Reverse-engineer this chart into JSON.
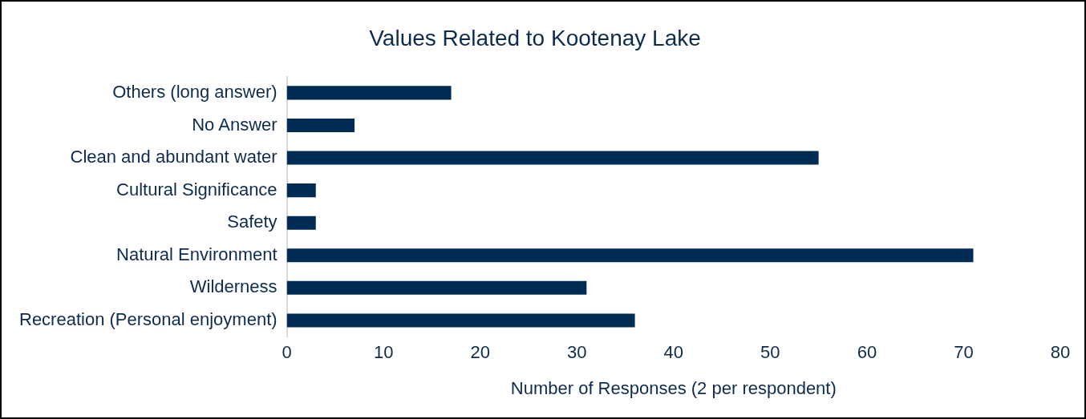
{
  "chart_data": {
    "type": "bar",
    "orientation": "horizontal",
    "title": "Values Related to Kootenay Lake",
    "xlabel": "Number of Responses (2 per respondent)",
    "categories": [
      "Others (long answer)",
      "No Answer",
      "Clean and abundant water",
      "Cultural Significance",
      "Safety",
      "Natural Environment",
      "Wilderness",
      "Recreation (Personal enjoyment)"
    ],
    "values": [
      17,
      7,
      55,
      3,
      3,
      71,
      31,
      36
    ],
    "color": "#002b54",
    "xlim": [
      0,
      80
    ],
    "xticks": [
      0,
      10,
      20,
      30,
      40,
      50,
      60,
      70,
      80
    ],
    "grid": false,
    "legend": false
  }
}
